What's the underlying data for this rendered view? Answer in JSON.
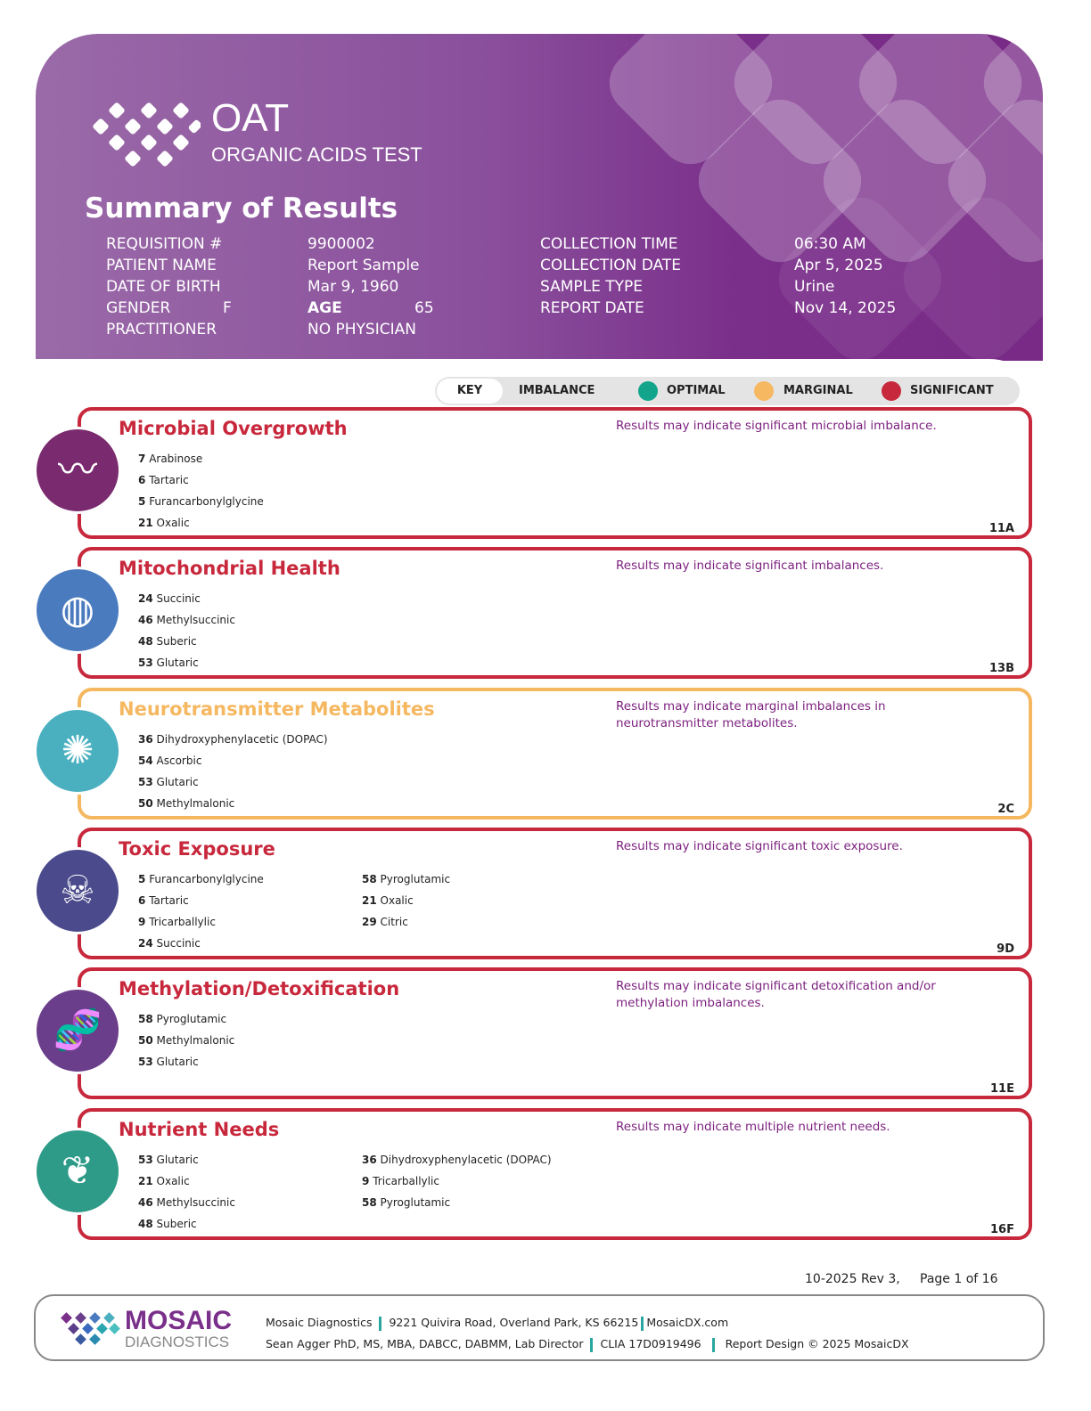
{
  "header": {
    "brand": "OAT",
    "subtitle": "ORGANIC ACIDS TEST",
    "title": "Summary of Results"
  },
  "patient": {
    "left": [
      {
        "label": "REQUISITION #",
        "value": "9900002"
      },
      {
        "label": "PATIENT NAME",
        "value": "Report Sample"
      },
      {
        "label": "DATE OF BIRTH",
        "value": "Mar 9, 1960"
      },
      {
        "label": "GENDER",
        "value": "F",
        "label2": "AGE",
        "value2": "65"
      },
      {
        "label": "PRACTITIONER",
        "value": "NO PHYSICIAN"
      }
    ],
    "right": [
      {
        "label": "COLLECTION TIME",
        "value": "06:30 AM"
      },
      {
        "label": "COLLECTION DATE",
        "value": "Apr 5, 2025"
      },
      {
        "label": "SAMPLE TYPE",
        "value": "Urine"
      },
      {
        "label": "REPORT DATE",
        "value": "Nov 14, 2025"
      }
    ]
  },
  "key": {
    "key": "KEY",
    "imbalance": "IMBALANCE",
    "optimal": "OPTIMAL",
    "marginal": "MARGINAL",
    "significant": "SIGNIFICANT",
    "colors": {
      "optimal": "#12a58c",
      "marginal": "#f7b862",
      "significant": "#c8283c"
    }
  },
  "sections": [
    {
      "title": "Microbial Overgrowth",
      "status": "significant",
      "icon": "intestine-icon",
      "color": "#7a2a6e",
      "message": "Results may indicate significant microbial imbalance.",
      "code": "11A",
      "col1": [
        [
          "7",
          "Arabinose"
        ],
        [
          "6",
          "Tartaric"
        ],
        [
          "5",
          "Furancarbonylglycine"
        ],
        [
          "21",
          "Oxalic"
        ]
      ],
      "col2": []
    },
    {
      "title": "Mitochondrial Health",
      "status": "significant",
      "icon": "mitochondria-icon",
      "color": "#4a7bbf",
      "message": "Results may indicate significant imbalances.",
      "code": "13B",
      "col1": [
        [
          "24",
          "Succinic"
        ],
        [
          "46",
          "Methylsuccinic"
        ],
        [
          "48",
          "Suberic"
        ],
        [
          "53",
          "Glutaric"
        ]
      ],
      "col2": []
    },
    {
      "title": "Neurotransmitter Metabolites",
      "status": "marginal",
      "icon": "brain-neuron-icon",
      "color": "#4ab0c0",
      "message": "Results may indicate marginal imbalances in neurotransmitter metabolites.",
      "code": "2C",
      "col1": [
        [
          "36",
          "Dihydroxyphenylacetic (DOPAC)"
        ],
        [
          "54",
          "Ascorbic"
        ],
        [
          "53",
          "Glutaric"
        ],
        [
          "50",
          "Methylmalonic"
        ]
      ],
      "col2": []
    },
    {
      "title": "Toxic Exposure",
      "status": "significant",
      "icon": "toxic-chemicals-icon",
      "color": "#4a4a8c",
      "message": "Results may indicate significant toxic exposure.",
      "code": "9D",
      "col1": [
        [
          "5",
          "Furancarbonylglycine"
        ],
        [
          "6",
          "Tartaric"
        ],
        [
          "9",
          "Tricarballylic"
        ],
        [
          "24",
          "Succinic"
        ]
      ],
      "col2": [
        [
          "58",
          "Pyroglutamic"
        ],
        [
          "21",
          "Oxalic"
        ],
        [
          "29",
          "Citric"
        ]
      ]
    },
    {
      "title": "Methylation/Detoxification",
      "status": "significant",
      "icon": "dna-methyl-icon",
      "color": "#6a3e8a",
      "message": "Results may indicate significant detoxification and/or methylation imbalances.",
      "code": "11E",
      "col1": [
        [
          "58",
          "Pyroglutamic"
        ],
        [
          "50",
          "Methylmalonic"
        ],
        [
          "53",
          "Glutaric"
        ]
      ],
      "col2": []
    },
    {
      "title": "Nutrient Needs",
      "status": "significant",
      "icon": "vegetables-bowl-icon",
      "color": "#2e9a88",
      "message": "Results may indicate multiple nutrient needs.",
      "code": "16F",
      "col1": [
        [
          "53",
          "Glutaric"
        ],
        [
          "21",
          "Oxalic"
        ],
        [
          "46",
          "Methylsuccinic"
        ],
        [
          "48",
          "Suberic"
        ]
      ],
      "col2": [
        [
          "36",
          "Dihydroxyphenylacetic (DOPAC)"
        ],
        [
          "9",
          "Tricarballylic"
        ],
        [
          "58",
          "Pyroglutamic"
        ]
      ]
    }
  ],
  "page": {
    "revision": "10-2025 Rev 3,",
    "page_number": "Page 1 of 16"
  },
  "footer": {
    "logo_top": "MOSAIC",
    "logo_bottom": "DIAGNOSTICS",
    "company": "Mosaic Diagnostics",
    "address": "9221 Quivira Road, Overland Park, KS 66215",
    "website": "MosaicDX.com",
    "director": "Sean Agger PhD, MS, MBA, DABCC, DABMM, Lab Director",
    "clia": "CLIA 17D0919496",
    "design": "Report Design © 2025 MosaicDX"
  }
}
